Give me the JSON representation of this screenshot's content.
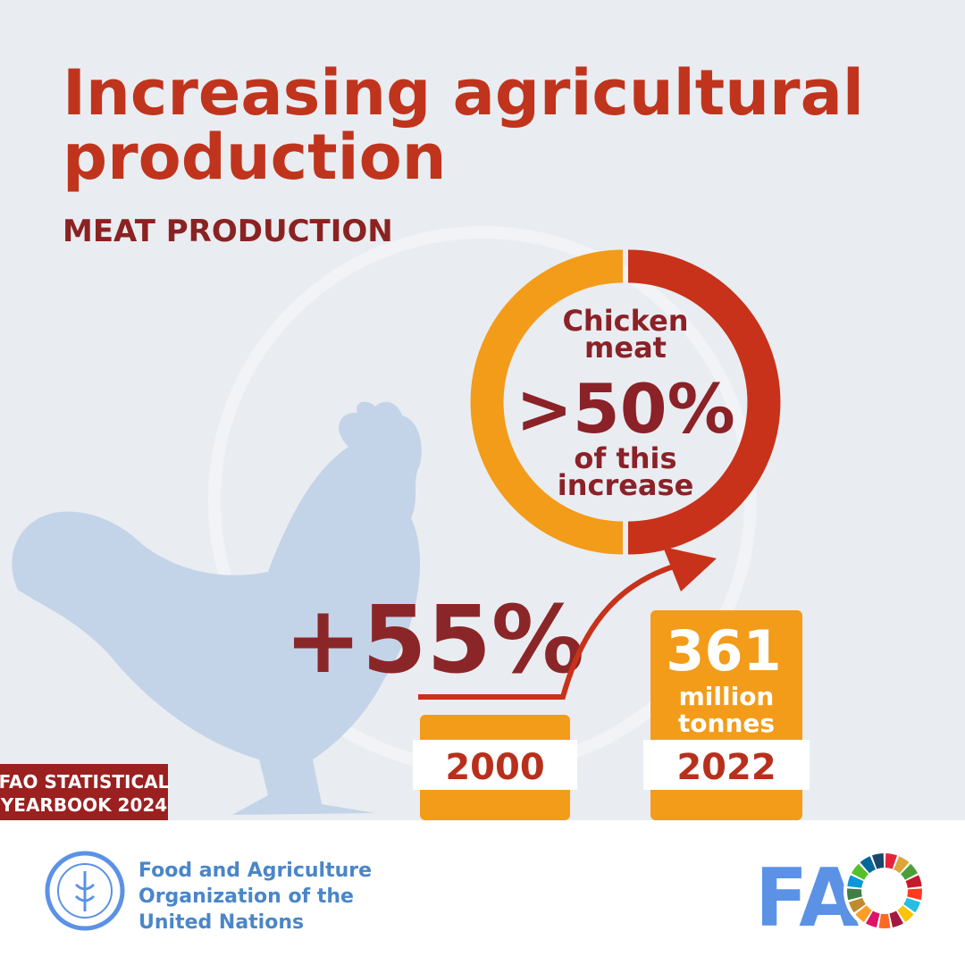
{
  "header": {
    "title_lines": [
      "Increasing agricultural",
      "production"
    ],
    "subtitle": "MEAT PRODUCTION"
  },
  "donut": {
    "line1": "Chicken",
    "line2": "meat",
    "share": ">50%",
    "line3": "of this",
    "line4": "increase"
  },
  "growth": "+55%",
  "bars": [
    {
      "year": "2000"
    },
    {
      "year": "2022",
      "amount": "361",
      "unit_lines": [
        "million",
        "tonnes"
      ]
    }
  ],
  "badge": [
    "FAO STATISTICAL",
    "YEARBOOK 2024"
  ],
  "footer": {
    "org_lines": [
      "Food and Agriculture",
      "Organization of the",
      "United Nations"
    ],
    "wordmark": "FAO"
  }
}
